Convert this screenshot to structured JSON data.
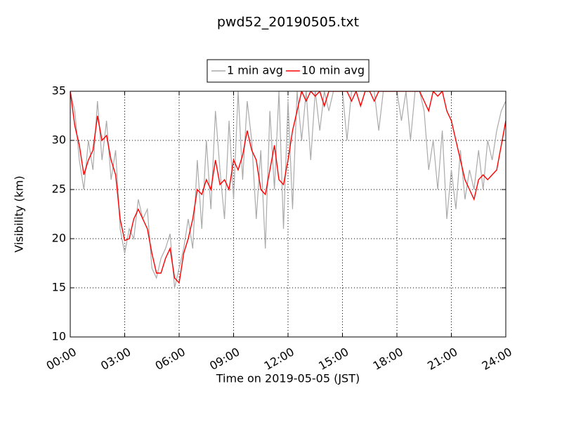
{
  "chart_data": {
    "type": "line",
    "title": "pwd52_20190505.txt",
    "xlabel": "Time on 2019-05-05 (JST)",
    "ylabel": "Visibility (km)",
    "legend": "upper center",
    "grid": true,
    "xlim": [
      0,
      24
    ],
    "ylim": [
      10,
      35
    ],
    "yticks": [
      10,
      15,
      20,
      25,
      30,
      35
    ],
    "xticks": [
      {
        "value": 0,
        "label": "00:00"
      },
      {
        "value": 3,
        "label": "03:00"
      },
      {
        "value": 6,
        "label": "06:00"
      },
      {
        "value": 9,
        "label": "09:00"
      },
      {
        "value": 12,
        "label": "12:00"
      },
      {
        "value": 15,
        "label": "15:00"
      },
      {
        "value": 18,
        "label": "18:00"
      },
      {
        "value": 21,
        "label": "21:00"
      },
      {
        "value": 24,
        "label": "24:00"
      }
    ],
    "x": [
      0,
      0.25,
      0.5,
      0.75,
      1,
      1.25,
      1.5,
      1.75,
      2,
      2.25,
      2.5,
      2.75,
      3,
      3.25,
      3.5,
      3.75,
      4,
      4.25,
      4.5,
      4.75,
      5,
      5.25,
      5.5,
      5.75,
      6,
      6.25,
      6.5,
      6.75,
      7,
      7.25,
      7.5,
      7.75,
      8,
      8.25,
      8.5,
      8.75,
      9,
      9.25,
      9.5,
      9.75,
      10,
      10.25,
      10.5,
      10.75,
      11,
      11.25,
      11.5,
      11.75,
      12,
      12.25,
      12.5,
      12.75,
      13,
      13.25,
      13.5,
      13.75,
      14,
      14.25,
      14.5,
      14.75,
      15,
      15.25,
      15.5,
      15.75,
      16,
      16.25,
      16.5,
      16.75,
      17,
      17.25,
      17.5,
      17.75,
      18,
      18.25,
      18.5,
      18.75,
      19,
      19.25,
      19.5,
      19.75,
      20,
      20.25,
      20.5,
      20.75,
      21,
      21.25,
      21.5,
      21.75,
      22,
      22.25,
      22.5,
      22.75,
      23,
      23.25,
      23.5,
      23.75,
      24
    ],
    "series": [
      {
        "name": "1 min avg",
        "color": "#aaaaaa",
        "values": [
          35,
          33,
          28,
          25,
          30,
          27,
          34,
          28,
          32,
          26,
          29,
          21,
          18.5,
          21,
          20,
          24,
          22,
          23,
          17,
          16,
          18,
          19,
          20.5,
          15,
          17,
          19,
          22,
          19,
          28,
          21,
          30,
          23,
          33,
          27,
          22,
          32,
          24,
          35,
          26,
          34,
          30,
          22,
          29,
          19,
          33,
          25,
          35,
          21,
          34,
          23,
          35,
          30,
          35,
          28,
          35,
          31,
          35,
          33,
          35,
          35,
          35,
          30,
          35,
          35,
          35,
          35,
          35,
          35,
          31,
          35,
          35,
          35,
          35,
          32,
          35,
          30,
          35,
          35,
          33,
          27,
          30,
          25,
          31,
          22,
          27,
          23,
          29,
          24,
          27,
          25,
          29,
          25,
          30,
          28,
          31,
          33,
          34
        ]
      },
      {
        "name": "10 min avg",
        "color": "#ff0000",
        "values": [
          35,
          31.5,
          29.5,
          26.5,
          28,
          29,
          32.5,
          30,
          30.5,
          28,
          26.5,
          22,
          19.8,
          20,
          22,
          23,
          22,
          21,
          18.5,
          16.5,
          16.5,
          18,
          19,
          16,
          15.5,
          18.5,
          20,
          22,
          25,
          24.5,
          26,
          25,
          28,
          25.5,
          26,
          25,
          28,
          27,
          28.5,
          31,
          29,
          28,
          25,
          24.5,
          27,
          29.5,
          26,
          25.5,
          28,
          31,
          33,
          35,
          34,
          35,
          34.5,
          35,
          33.5,
          35,
          35,
          35,
          35,
          35,
          34,
          35,
          33.5,
          35,
          35,
          34,
          35,
          35,
          35,
          35,
          35,
          35,
          35,
          35,
          35,
          35,
          34,
          33,
          35,
          34.5,
          35,
          33,
          32,
          30,
          28,
          26,
          25,
          24,
          26,
          26.5,
          26,
          26.5,
          27,
          29.5,
          32
        ]
      }
    ]
  }
}
